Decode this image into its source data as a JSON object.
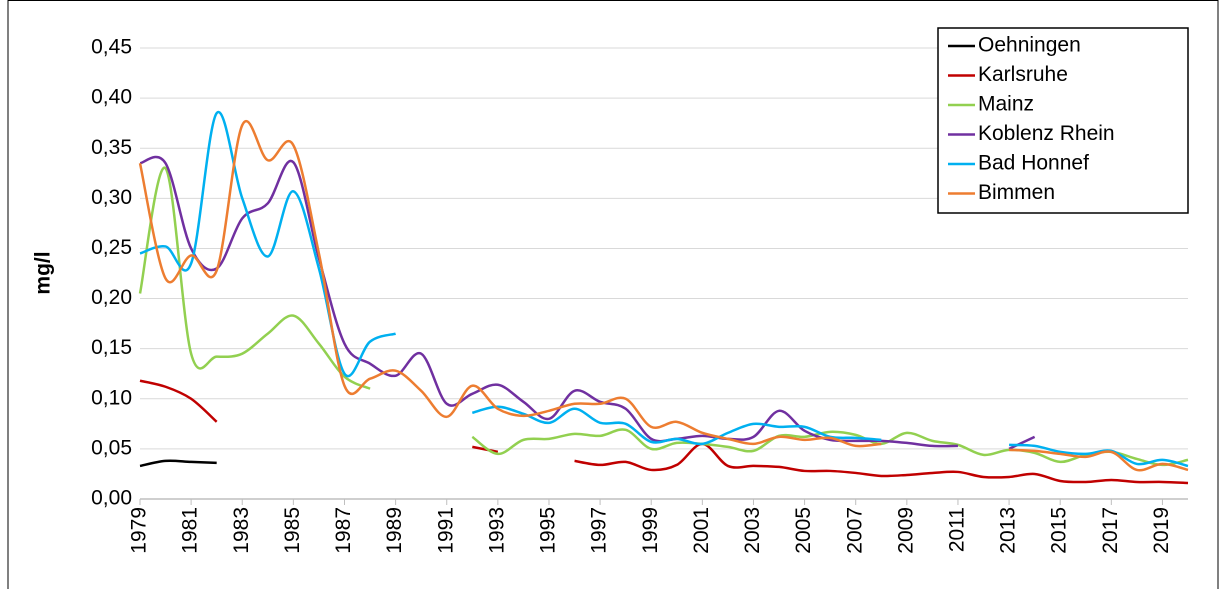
{
  "chart_data": {
    "type": "line",
    "y_label": "mg/l",
    "x": [
      1979,
      1980,
      1981,
      1982,
      1983,
      1984,
      1985,
      1986,
      1987,
      1988,
      1989,
      1990,
      1991,
      1992,
      1993,
      1994,
      1995,
      1996,
      1997,
      1998,
      1999,
      2000,
      2001,
      2002,
      2003,
      2004,
      2005,
      2006,
      2007,
      2008,
      2009,
      2010,
      2011,
      2012,
      2013,
      2014,
      2015,
      2016,
      2017,
      2018,
      2019,
      2020
    ],
    "xlim": [
      1979,
      2020
    ],
    "xticks": [
      1979,
      1981,
      1983,
      1985,
      1987,
      1989,
      1991,
      1993,
      1995,
      1997,
      1999,
      2001,
      2003,
      2005,
      2007,
      2009,
      2011,
      2013,
      2015,
      2017,
      2019
    ],
    "ylim": [
      0,
      0.45
    ],
    "yticks": [
      {
        "value": 0,
        "label": "0,00"
      },
      {
        "value": 0.05,
        "label": "0,05"
      },
      {
        "value": 0.1,
        "label": "0,10"
      },
      {
        "value": 0.15,
        "label": "0,15"
      },
      {
        "value": 0.2,
        "label": "0,20"
      },
      {
        "value": 0.25,
        "label": "0,25"
      },
      {
        "value": 0.3,
        "label": "0,30"
      },
      {
        "value": 0.35,
        "label": "0,35"
      },
      {
        "value": 0.4,
        "label": "0,40"
      },
      {
        "value": 0.45,
        "label": "0,45"
      }
    ],
    "grid": true,
    "legend": "upper right",
    "series": [
      {
        "name": "Oehningen",
        "color": "#000000",
        "values": [
          0.033,
          0.038,
          0.037,
          0.036,
          null,
          null,
          null,
          null,
          null,
          null,
          null,
          null,
          null,
          null,
          null,
          null,
          null,
          null,
          null,
          null,
          null,
          null,
          null,
          null,
          null,
          null,
          null,
          null,
          null,
          null,
          null,
          null,
          null,
          null,
          null,
          null,
          null,
          null,
          null,
          null,
          null,
          null
        ]
      },
      {
        "name": "Karlsruhe",
        "color": "#c00000",
        "values": [
          0.118,
          0.112,
          0.1,
          0.077,
          null,
          null,
          null,
          null,
          null,
          null,
          null,
          null,
          null,
          0.052,
          0.047,
          null,
          null,
          0.038,
          0.034,
          0.037,
          0.029,
          0.034,
          0.055,
          0.033,
          0.033,
          0.032,
          0.028,
          0.028,
          0.026,
          0.023,
          0.024,
          0.026,
          0.027,
          0.022,
          0.022,
          0.025,
          0.018,
          0.017,
          0.019,
          0.017,
          0.017,
          0.016
        ]
      },
      {
        "name": "Mainz",
        "color": "#92d050",
        "values": [
          0.205,
          0.33,
          0.145,
          0.142,
          0.145,
          0.165,
          0.183,
          0.155,
          0.122,
          0.11,
          null,
          null,
          null,
          0.062,
          0.045,
          0.059,
          0.06,
          0.065,
          0.063,
          0.069,
          0.05,
          0.056,
          0.055,
          0.052,
          0.048,
          0.063,
          0.062,
          0.067,
          0.064,
          0.055,
          0.066,
          0.058,
          0.054,
          0.044,
          0.049,
          0.046,
          0.037,
          0.044,
          0.047,
          0.04,
          0.034,
          0.039
        ]
      },
      {
        "name": "Koblenz Rhein",
        "color": "#7030a0",
        "values": [
          0.335,
          0.335,
          0.25,
          0.23,
          0.28,
          0.295,
          0.336,
          0.24,
          0.155,
          0.135,
          0.123,
          0.145,
          0.095,
          0.105,
          0.114,
          0.097,
          0.08,
          0.108,
          0.097,
          0.09,
          0.06,
          0.06,
          0.063,
          0.06,
          0.062,
          0.088,
          0.068,
          0.059,
          0.058,
          0.058,
          0.056,
          0.053,
          0.053,
          null,
          0.05,
          0.062,
          null,
          null,
          null,
          null,
          null,
          null
        ]
      },
      {
        "name": "Bad Honnef",
        "color": "#00b0f0",
        "values": [
          0.245,
          0.252,
          0.235,
          0.385,
          0.3,
          0.242,
          0.307,
          0.23,
          0.125,
          0.157,
          0.165,
          null,
          null,
          0.086,
          0.092,
          0.085,
          0.076,
          0.09,
          0.076,
          0.075,
          0.057,
          0.06,
          0.055,
          0.066,
          0.075,
          0.072,
          0.072,
          0.062,
          0.061,
          0.059,
          null,
          null,
          null,
          null,
          0.054,
          0.053,
          0.047,
          0.045,
          0.048,
          0.035,
          0.039,
          0.033
        ]
      },
      {
        "name": "Bimmen",
        "color": "#ed7d31",
        "values": [
          0.335,
          0.22,
          0.243,
          0.228,
          0.373,
          0.338,
          0.353,
          0.245,
          0.113,
          0.12,
          0.128,
          0.108,
          0.082,
          0.113,
          0.09,
          0.083,
          0.088,
          0.095,
          0.095,
          0.1,
          0.072,
          0.077,
          0.066,
          0.06,
          0.055,
          0.062,
          0.059,
          0.061,
          0.053,
          0.055,
          null,
          null,
          null,
          null,
          0.049,
          0.048,
          0.045,
          0.042,
          0.047,
          0.029,
          0.035,
          0.029
        ]
      }
    ]
  }
}
